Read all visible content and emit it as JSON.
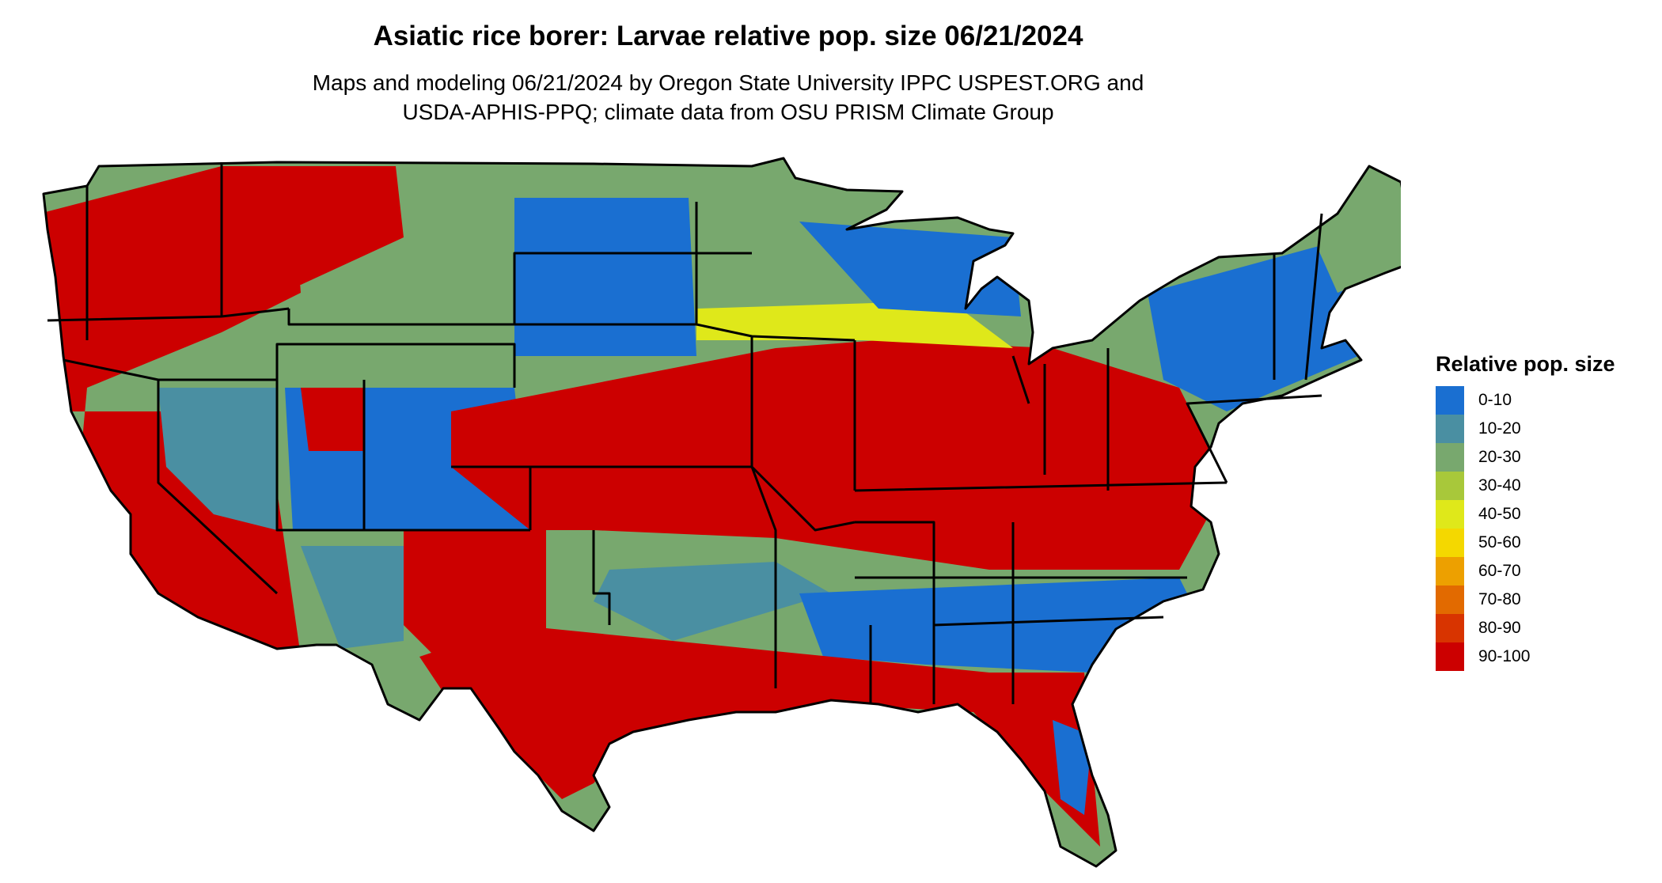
{
  "title": "Asiatic rice borer: Larvae relative pop. size 06/21/2024",
  "subtitle_lines": [
    "Maps and modeling 06/21/2024 by Oregon State University IPPC USPEST.ORG and",
    "USDA-APHIS-PPQ; climate data from OSU PRISM Climate Group"
  ],
  "legend": {
    "title": "Relative pop. size",
    "items": [
      {
        "label": "0-10",
        "color": "#1a6fd1"
      },
      {
        "label": "10-20",
        "color": "#4a8fa2"
      },
      {
        "label": "20-30",
        "color": "#78a86e"
      },
      {
        "label": "30-40",
        "color": "#a8c83a"
      },
      {
        "label": "40-50",
        "color": "#dfe81a"
      },
      {
        "label": "50-60",
        "color": "#f4d800"
      },
      {
        "label": "60-70",
        "color": "#eda000"
      },
      {
        "label": "70-80",
        "color": "#e26a00"
      },
      {
        "label": "80-90",
        "color": "#d83400"
      },
      {
        "label": "90-100",
        "color": "#cc0000"
      }
    ]
  },
  "map": {
    "region": "contiguous-united-states",
    "boundaries": "state-borders",
    "boundary_color": "#000000",
    "regions": [
      {
        "area": "Great Plains (KS, MO, OK north)",
        "class": "90-100"
      },
      {
        "area": "Midwest (IL, IN, OH, KY, TN)",
        "class": "90-100"
      },
      {
        "area": "Mid-Atlantic (VA, NC, MD)",
        "class": "90-100"
      },
      {
        "area": "Gulf Coast (TX, LA, MS)",
        "class": "90-100"
      },
      {
        "area": "Florida",
        "class": "90-100"
      },
      {
        "area": "California Central Valley",
        "class": "90-100"
      },
      {
        "area": "Idaho / Montana mountains",
        "class": "90-100"
      },
      {
        "area": "Southern Plains (OK, AR)",
        "class": "10-20"
      },
      {
        "area": "Deep South (AL, GA, SC)",
        "class": "0-10"
      },
      {
        "area": "Upper Midwest (MN, WI, MI)",
        "class": "0-10"
      },
      {
        "area": "Dakotas",
        "class": "0-10"
      },
      {
        "area": "New England",
        "class": "20-30"
      },
      {
        "area": "Great Basin (NV, UT)",
        "class": "10-20"
      },
      {
        "area": "Colorado Rockies / Four Corners",
        "class": "0-10"
      },
      {
        "area": "Pacific Northwest coast",
        "class": "20-30"
      }
    ]
  }
}
